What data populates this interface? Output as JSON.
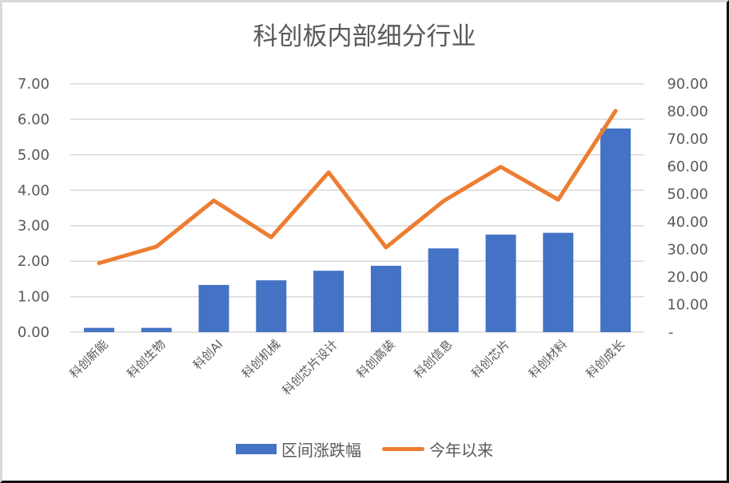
{
  "chart_data": {
    "type": "bar+line",
    "title": "科创板内部细分行业",
    "categories": [
      "科创新能",
      "科创生物",
      "科创AI",
      "科创机械",
      "科创芯片设计",
      "科创高装",
      "科创信息",
      "科创芯片",
      "科创材料",
      "科创成长"
    ],
    "series": [
      {
        "name": "区间涨跌幅",
        "type": "bar",
        "axis": "left",
        "color": "#4472C4",
        "values": [
          0.12,
          0.12,
          1.33,
          1.46,
          1.73,
          1.87,
          2.36,
          2.75,
          2.8,
          5.74
        ]
      },
      {
        "name": "今年以来",
        "type": "line",
        "axis": "right",
        "color": "#ED7D31",
        "values": [
          25.0,
          31.0,
          47.7,
          34.4,
          57.9,
          30.7,
          47.5,
          59.9,
          48.0,
          80.2
        ]
      }
    ],
    "left_axis": {
      "min": 0,
      "max": 7,
      "step": 1,
      "tick_labels": [
        "0.00",
        "1.00",
        "2.00",
        "3.00",
        "4.00",
        "5.00",
        "6.00",
        "7.00"
      ]
    },
    "right_axis": {
      "min": 0,
      "max": 90,
      "step": 10,
      "tick_labels": [
        "-",
        "10.00",
        "20.00",
        "30.00",
        "40.00",
        "50.00",
        "60.00",
        "70.00",
        "80.00",
        "90.00"
      ]
    },
    "xlabel": "",
    "ylabel": "",
    "grid": true,
    "legend_position": "bottom",
    "x_tick_rotation": -45
  },
  "legend": {
    "bar_label": "区间涨跌幅",
    "line_label": "今年以来"
  }
}
